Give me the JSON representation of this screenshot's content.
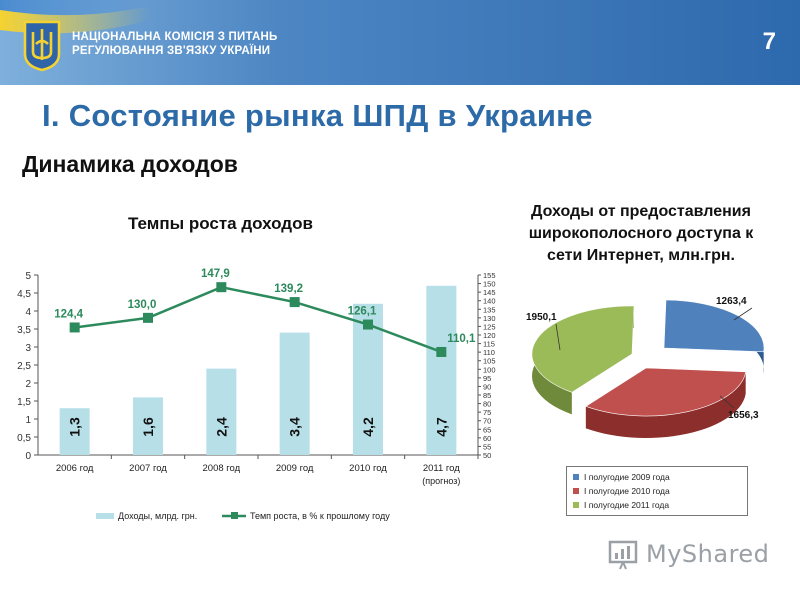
{
  "header": {
    "org_line1": "НАЦІОНАЛЬНА КОМІСІЯ З ПИТАНЬ",
    "org_line2": "РЕГУЛЮВАННЯ ЗВ'ЯЗКУ УКРАЇНИ",
    "slide_number": "7"
  },
  "section_title": "I. Состояние рынка ШПД в Украине",
  "subtitle": "Динамика доходов",
  "watermark": "MyShared",
  "colors": {
    "header": "#2d69ad",
    "bar": "#b7dfe8",
    "line": "#2d8a5c",
    "pie_2009": "#4f81bd",
    "pie_2010": "#c0504d",
    "pie_2011": "#9bbb59"
  },
  "chart_data": [
    {
      "type": "bar",
      "title": "Темпы роста доходов",
      "categories": [
        "2006 год",
        "2007 год",
        "2008 год",
        "2009 год",
        "2010 год",
        "2011 год"
      ],
      "category_note": "(прогноз)",
      "series": [
        {
          "name": "Доходы, млрд. грн.",
          "type": "bar",
          "axis": "left",
          "values": [
            1.3,
            1.6,
            2.4,
            3.4,
            4.2,
            4.7
          ],
          "labels": [
            "1,3",
            "1,6",
            "2,4",
            "3,4",
            "4,2",
            "4,7"
          ]
        },
        {
          "name": "Темп роста, в % к прошлому году",
          "type": "line",
          "axis": "right",
          "values": [
            124.4,
            130.0,
            147.9,
            139.2,
            126.1,
            110.1
          ],
          "labels": [
            "124,4",
            "130,0",
            "147,9",
            "139,2",
            "126,1",
            "110,1"
          ]
        }
      ],
      "y_left": {
        "ylim": [
          0,
          5
        ],
        "ticks": [
          "0",
          "0,5",
          "1",
          "1,5",
          "2",
          "2,5",
          "3",
          "3,5",
          "4",
          "4,5",
          "5"
        ]
      },
      "y_right": {
        "ylim": [
          50,
          155
        ],
        "ticks": [
          "50",
          "55",
          "60",
          "65",
          "70",
          "75",
          "80",
          "85",
          "90",
          "95",
          "100",
          "105",
          "110",
          "115",
          "120",
          "125",
          "130",
          "135",
          "140",
          "145",
          "150",
          "155"
        ]
      },
      "grid": false,
      "legend": "bottom"
    },
    {
      "type": "pie",
      "title_lines": [
        "Доходы от предоставления",
        "широкополосного доступа к",
        "сети Интернет, млн.грн."
      ],
      "slices": [
        {
          "name": "I полугодие 2009 года",
          "value": 1263.4,
          "label": "1263,4"
        },
        {
          "name": "I полугодие 2010 года",
          "value": 1656.3,
          "label": "1656,3"
        },
        {
          "name": "I полугодие 2011 года",
          "value": 1950.1,
          "label": "1950,1"
        }
      ],
      "legend": "bottom"
    }
  ]
}
